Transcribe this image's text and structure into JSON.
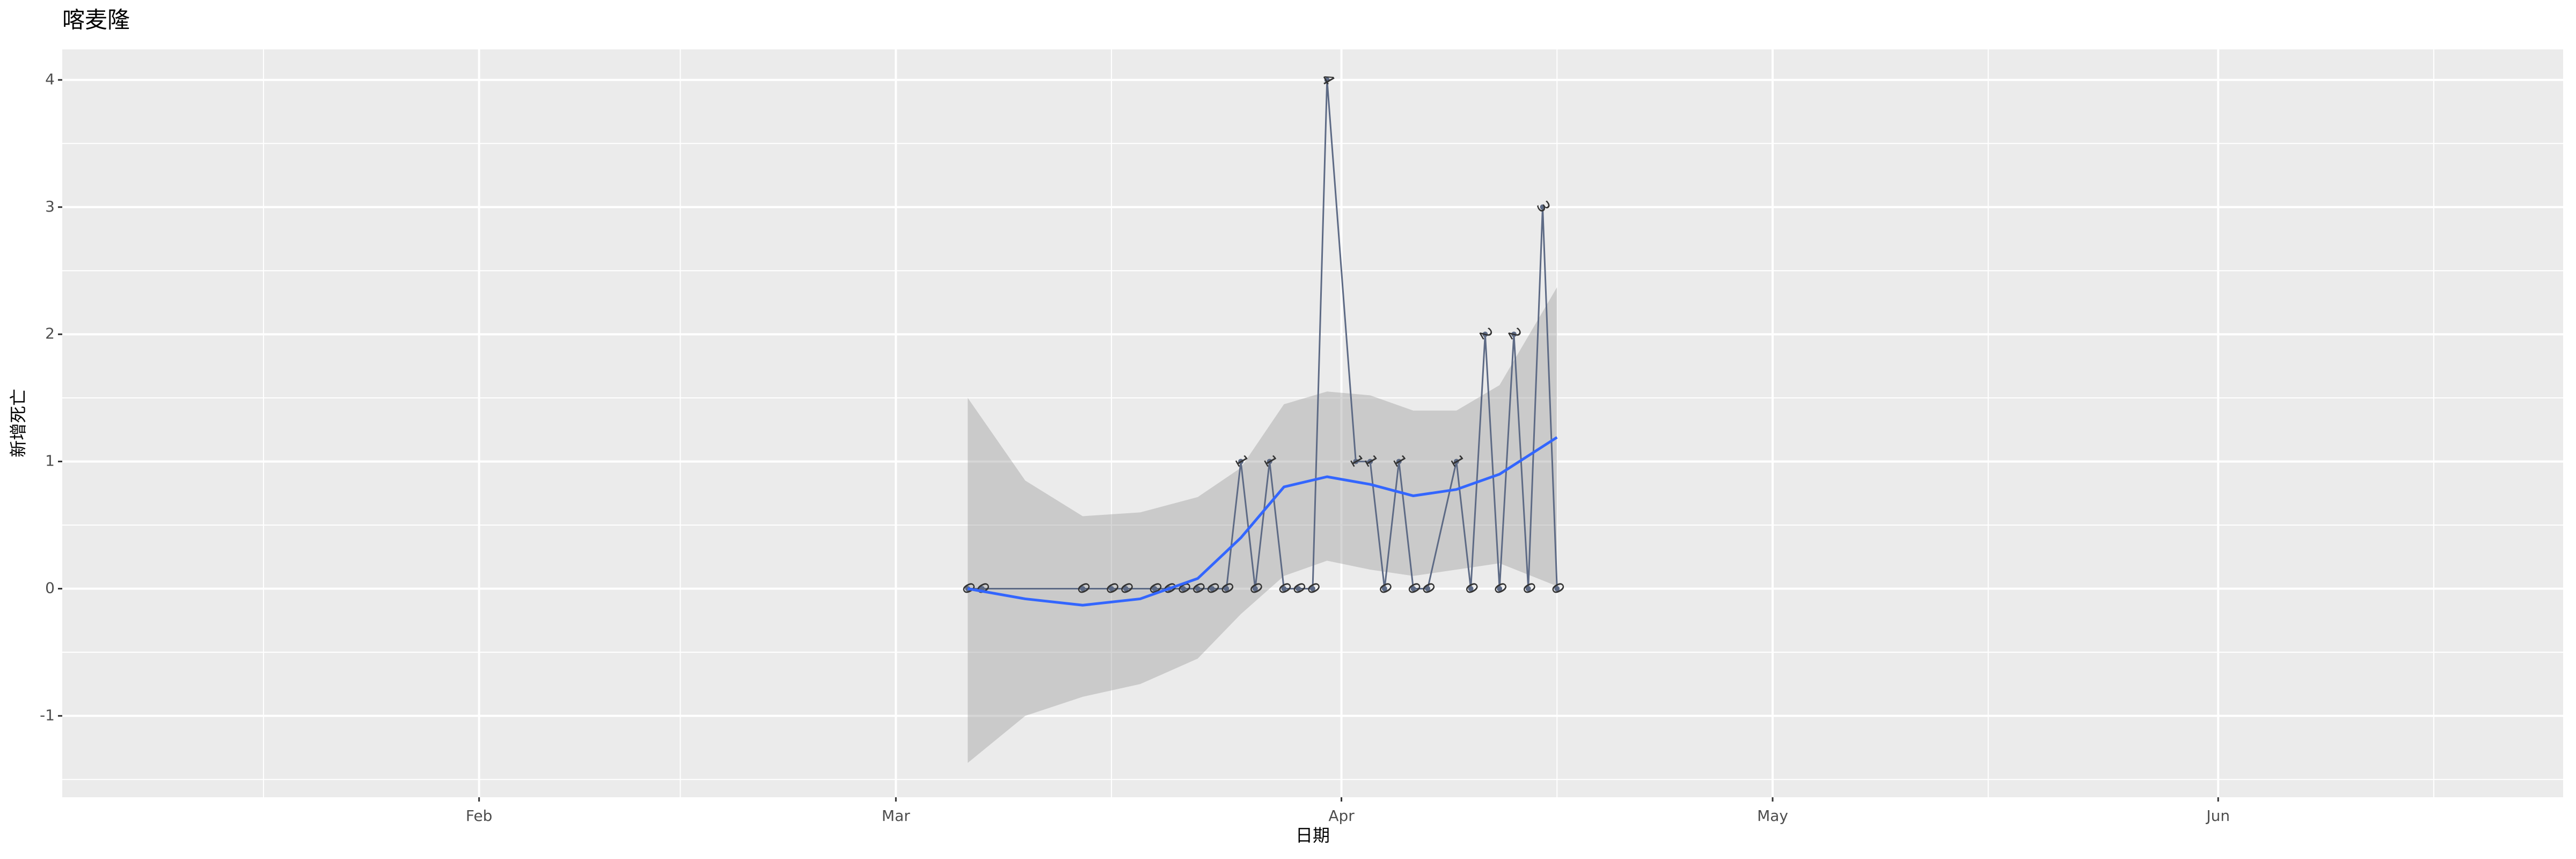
{
  "chart_data": {
    "type": "line",
    "title": "喀麦隆",
    "x_label": "日期",
    "y_label": "新增死亡",
    "xlim": [
      "01-03",
      "06-25"
    ],
    "ylim": [
      -1.64,
      4.24
    ],
    "xticks": [
      {
        "value": "02-01",
        "label": "Feb"
      },
      {
        "value": "03-01",
        "label": "Mar"
      },
      {
        "value": "04-01",
        "label": "Apr"
      },
      {
        "value": "05-01",
        "label": "May"
      },
      {
        "value": "06-01",
        "label": "Jun"
      }
    ],
    "x_minor_ticks": [
      "01-17",
      "02-15",
      "03-16",
      "04-16",
      "05-16",
      "06-16"
    ],
    "yticks": [
      -1,
      0,
      1,
      2,
      3,
      4
    ],
    "y_minor_ticks": [
      -1.5,
      -0.5,
      0.5,
      1.5,
      2.5,
      3.5
    ],
    "grid": true,
    "series": [
      {
        "color": "#5d6a85",
        "x": [
          "03-06",
          "03-07",
          "03-14",
          "03-16",
          "03-17",
          "03-19",
          "03-20",
          "03-21",
          "03-22",
          "03-23",
          "03-24",
          "03-25",
          "03-26",
          "03-27",
          "03-28",
          "03-29",
          "03-30",
          "03-31",
          "04-02",
          "04-03",
          "04-04",
          "04-05",
          "04-06",
          "04-07",
          "04-09",
          "04-10",
          "04-11",
          "04-12",
          "04-13",
          "04-14",
          "04-15",
          "04-16"
        ],
        "values": [
          0,
          0,
          0,
          0,
          0,
          0,
          0,
          0,
          0,
          0,
          0,
          1,
          0,
          1,
          0,
          0,
          0,
          4,
          1,
          1,
          0,
          1,
          0,
          0,
          1,
          0,
          2,
          0,
          2,
          0,
          3,
          0
        ]
      }
    ],
    "smooth": {
      "color": "#3366ff",
      "ribbon_color": "#999999",
      "x": [
        "03-06",
        "03-10",
        "03-14",
        "03-18",
        "03-22",
        "03-25",
        "03-28",
        "03-31",
        "04-03",
        "04-06",
        "04-09",
        "04-12",
        "04-16"
      ],
      "values": [
        0.0,
        -0.08,
        -0.13,
        -0.08,
        0.08,
        0.4,
        0.8,
        0.88,
        0.82,
        0.73,
        0.78,
        0.9,
        1.19
      ],
      "lower": [
        -1.37,
        -1.0,
        -0.85,
        -0.75,
        -0.55,
        -0.2,
        0.1,
        0.22,
        0.15,
        0.1,
        0.15,
        0.2,
        0.02
      ],
      "upper": [
        1.5,
        0.85,
        0.57,
        0.6,
        0.72,
        0.95,
        1.45,
        1.55,
        1.52,
        1.4,
        1.4,
        1.6,
        2.37
      ]
    }
  }
}
